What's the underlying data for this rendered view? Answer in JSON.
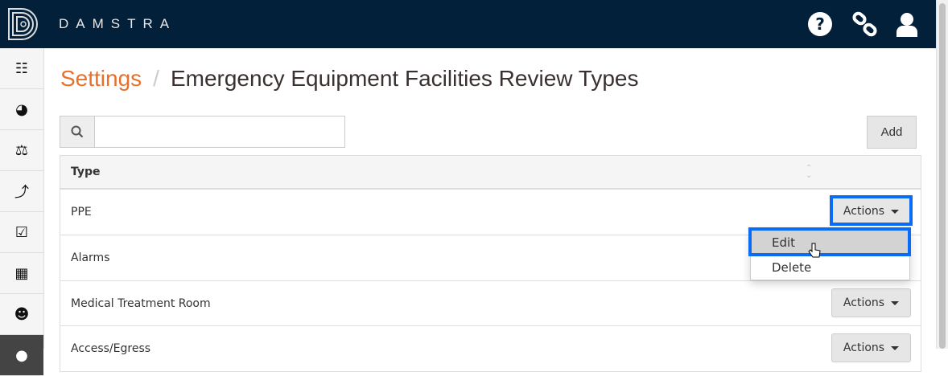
{
  "header": {
    "brand": "DAMSTRA",
    "icons": [
      "help-circle-icon",
      "link-icon",
      "user-icon"
    ],
    "background": "#03203a"
  },
  "sidebar": {
    "items": [
      "sitemap-icon",
      "dashboard-icon",
      "balance-scale-icon",
      "bolt-icon",
      "check-square-icon",
      "building-icon",
      "users-icon",
      "circle-icon"
    ]
  },
  "breadcrumb": {
    "parent": "Settings",
    "separator": "/",
    "current": "Emergency Equipment Facilities Review Types",
    "accent": "#e8702a"
  },
  "search": {
    "value": "",
    "placeholder": ""
  },
  "toolbar": {
    "add_label": "Add"
  },
  "table": {
    "header": "Type",
    "rows": [
      {
        "type": "PPE",
        "action": "Actions"
      },
      {
        "type": "Alarms",
        "action": "Actions"
      },
      {
        "type": "Medical Treatment Room",
        "action": "Actions"
      },
      {
        "type": "Access/Egress",
        "action": "Actions"
      }
    ]
  },
  "dropdown": {
    "items": [
      "Edit",
      "Delete"
    ],
    "highlight": "#0a6cf5"
  }
}
